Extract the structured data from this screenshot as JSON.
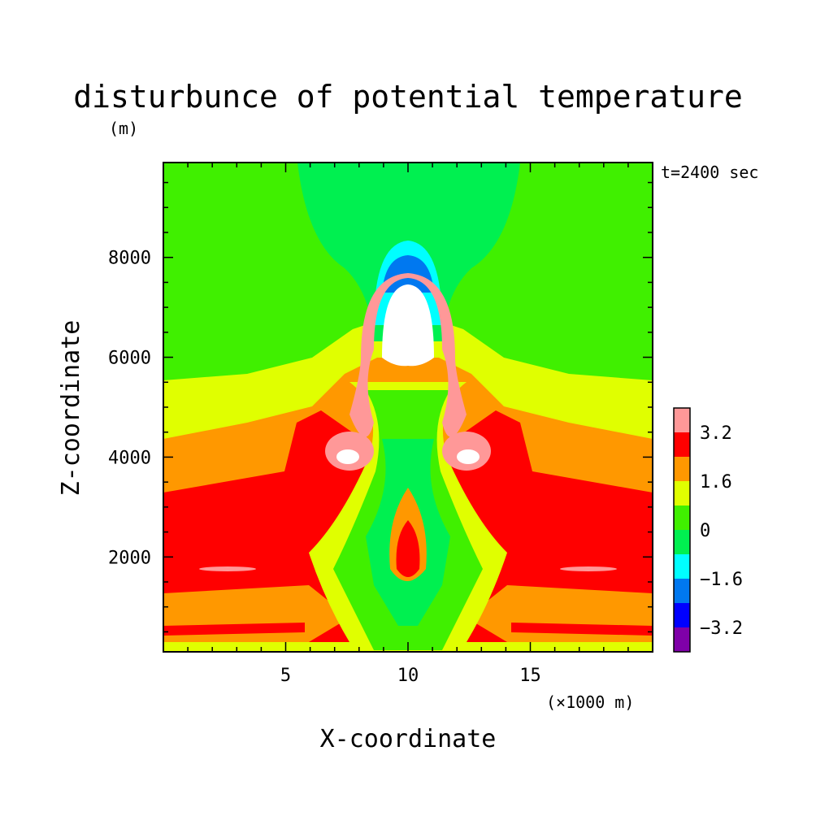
{
  "chart_data": {
    "type": "heatmap",
    "title": "disturbunce of potential temperature",
    "y_unit": "(m)",
    "time_label": "t=2400 sec",
    "xlabel": "X-coordinate",
    "ylabel": "Z-coordinate",
    "x_unit": "(×1000 m)",
    "xlim": [
      0,
      20
    ],
    "ylim": [
      100,
      9900
    ],
    "x_ticks": [
      {
        "value": 5,
        "label": "5"
      },
      {
        "value": 10,
        "label": "10"
      },
      {
        "value": 15,
        "label": "15"
      }
    ],
    "y_ticks": [
      {
        "value": 2000,
        "label": "2000"
      },
      {
        "value": 4000,
        "label": "4000"
      },
      {
        "value": 6000,
        "label": "6000"
      },
      {
        "value": 8000,
        "label": "8000"
      }
    ],
    "colorbar": {
      "levels": [
        -4,
        -3.2,
        -2.4,
        -1.6,
        -0.8,
        0,
        0.8,
        1.6,
        2.4,
        3.2,
        4
      ],
      "colors": [
        "#7f00a8",
        "#0000ff",
        "#0078f0",
        "#00ffff",
        "#00f050",
        "#40f000",
        "#e0ff00",
        "#ff9800",
        "#ff0000",
        "#ff9898"
      ],
      "labels": [
        {
          "value": -3.2,
          "label": "−3.2"
        },
        {
          "value": -1.6,
          "label": "−1.6"
        },
        {
          "value": 0,
          "label": "0"
        },
        {
          "value": 1.6,
          "label": "1.6"
        },
        {
          "value": 3.2,
          "label": "3.2"
        }
      ]
    },
    "regions": [
      {
        "name": "upper-background",
        "value": 0.4,
        "color": "#40f000"
      },
      {
        "name": "central-upper-column",
        "value": -0.4,
        "color": "#00f050"
      },
      {
        "name": "mid-layer",
        "value": 1.2,
        "color": "#e0ff00"
      },
      {
        "name": "mid-lower-layer",
        "value": 2.0,
        "color": "#ff9800"
      },
      {
        "name": "lower-warm-layer",
        "value": 2.8,
        "color": "#ff0000"
      },
      {
        "name": "thermal-cap",
        "value": 4.5,
        "color": "#ffffff"
      },
      {
        "name": "thermal-cap-edge",
        "value": 3.6,
        "color": "#ff9898"
      },
      {
        "name": "cool-shell",
        "value": -1.2,
        "color": "#00ffff"
      },
      {
        "name": "cold-shell",
        "value": -2.0,
        "color": "#0078f0"
      },
      {
        "name": "central-stem",
        "value": 0.4,
        "color": "#40f000"
      }
    ]
  }
}
